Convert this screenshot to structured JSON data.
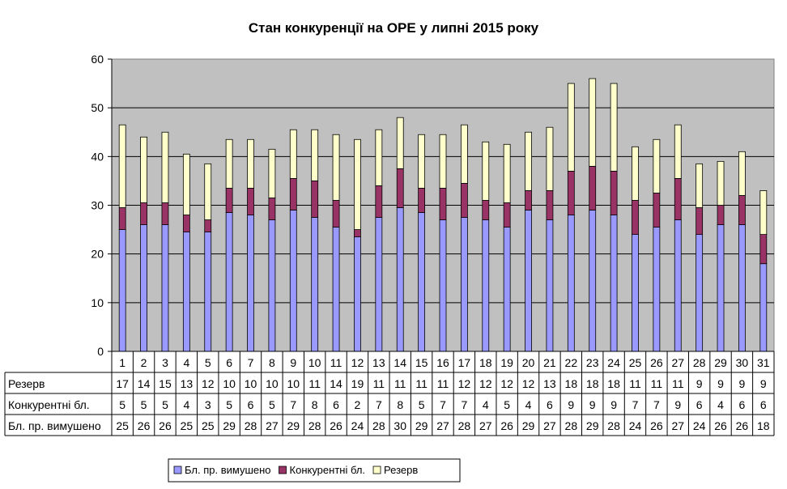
{
  "chart_data": {
    "type": "bar",
    "stacked": true,
    "title": "Стан конкуренції на ОРЕ  у липні 2015 року",
    "categories": [
      "1",
      "2",
      "3",
      "4",
      "5",
      "6",
      "7",
      "8",
      "9",
      "10",
      "11",
      "12",
      "13",
      "14",
      "15",
      "16",
      "17",
      "18",
      "19",
      "20",
      "21",
      "22",
      "23",
      "24",
      "25",
      "26",
      "27",
      "28",
      "29",
      "30",
      "31"
    ],
    "series": [
      {
        "name": "Бл. пр. вимушено",
        "color": "#9999ff",
        "values": [
          25,
          26,
          26,
          25,
          25,
          29,
          28,
          27,
          29,
          28,
          26,
          24,
          28,
          30,
          29,
          27,
          28,
          27,
          26,
          29,
          27,
          28,
          29,
          28,
          24,
          26,
          27,
          24,
          26,
          26,
          18
        ],
        "plotted": [
          25,
          26,
          26,
          24.5,
          24.5,
          28.5,
          28,
          27,
          29,
          27.5,
          25.5,
          23.5,
          27.5,
          29.5,
          28.5,
          27,
          27.5,
          27,
          25.5,
          29,
          27,
          28,
          29,
          28,
          24,
          25.5,
          27,
          24,
          26,
          26,
          18
        ]
      },
      {
        "name": "Конкурентні бл.",
        "color": "#993366",
        "values": [
          5,
          5,
          5,
          4,
          3,
          5,
          6,
          5,
          7,
          8,
          6,
          2,
          7,
          8,
          5,
          7,
          7,
          4,
          5,
          4,
          6,
          9,
          9,
          9,
          7,
          7,
          9,
          6,
          4,
          6,
          6
        ],
        "plotted": [
          4.5,
          4.5,
          4.5,
          3.5,
          2.5,
          5,
          5.5,
          4.5,
          6.5,
          7.5,
          5.5,
          1.5,
          6.5,
          8,
          5,
          6.5,
          7,
          4,
          5,
          4,
          6,
          9,
          9,
          9,
          7,
          7,
          8.5,
          5.5,
          4,
          6,
          6
        ]
      },
      {
        "name": "Резерв",
        "color": "#ffffcc",
        "values": [
          17,
          14,
          15,
          13,
          12,
          10,
          10,
          10,
          10,
          11,
          14,
          19,
          11,
          11,
          11,
          11,
          12,
          12,
          12,
          12,
          13,
          18,
          18,
          18,
          11,
          11,
          11,
          9,
          9,
          9,
          9
        ],
        "plotted": [
          17,
          13.5,
          14.5,
          12.5,
          11.5,
          10,
          10,
          10,
          10,
          10.5,
          13.5,
          18.5,
          11.5,
          10.5,
          11,
          11,
          12,
          12,
          12,
          12,
          13,
          18,
          18,
          18,
          11,
          11,
          11,
          9,
          9,
          9,
          9
        ]
      }
    ],
    "ylim": [
      0,
      60
    ],
    "yticks": [
      "0",
      "10",
      "20",
      "30",
      "40",
      "50",
      "60"
    ],
    "grid": true,
    "legend": "bottom",
    "table_rows_order": [
      "Резерв",
      "Конкурентні бл.",
      "Бл. пр. вимушено"
    ],
    "plot_background": "#c0c0c0"
  }
}
